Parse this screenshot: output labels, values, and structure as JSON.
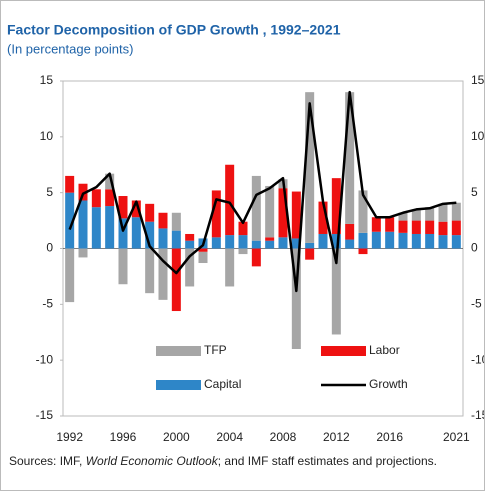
{
  "chart_data": {
    "type": "stacked_bar_line",
    "title": "Factor Decomposition of GDP Growth , 1992–2021",
    "subtitle": "(In percentage points)",
    "categories": [
      "1992",
      null,
      null,
      null,
      "1996",
      null,
      null,
      null,
      "2000",
      null,
      null,
      null,
      "2004",
      null,
      null,
      null,
      "2008",
      null,
      null,
      null,
      "2012",
      null,
      null,
      null,
      "2016",
      null,
      null,
      null,
      null,
      "2021"
    ],
    "series": [
      {
        "name": "Capital",
        "color": "#2e86c8",
        "kind": "bar",
        "values": [
          5.0,
          4.3,
          3.7,
          3.8,
          2.7,
          2.8,
          2.4,
          1.8,
          1.6,
          0.7,
          0.9,
          1.0,
          1.2,
          1.2,
          0.7,
          0.7,
          1.0,
          0.9,
          0.5,
          1.3,
          1.3,
          0.8,
          1.4,
          1.5,
          1.5,
          1.4,
          1.3,
          1.3,
          1.2,
          1.2
        ]
      },
      {
        "name": "Labor",
        "color": "#ee1111",
        "kind": "bar",
        "values": [
          1.5,
          1.5,
          1.6,
          1.5,
          2.0,
          1.5,
          1.6,
          1.4,
          -5.6,
          0.6,
          -0.3,
          4.2,
          6.3,
          1.2,
          -1.6,
          0.3,
          4.4,
          4.2,
          -1.0,
          2.9,
          5.0,
          1.4,
          -0.5,
          1.3,
          1.3,
          1.1,
          1.2,
          1.2,
          1.2,
          1.3
        ]
      },
      {
        "name": "TFP",
        "color": "#a6a6a6",
        "kind": "bar",
        "values": [
          -4.8,
          -0.8,
          0.0,
          1.4,
          -3.2,
          0.0,
          -4.0,
          -4.6,
          1.6,
          -3.4,
          -1.0,
          0.0,
          -3.4,
          -0.5,
          5.8,
          4.6,
          0.8,
          -9.0,
          13.5,
          0.0,
          -7.7,
          11.8,
          3.8,
          0.0,
          0.0,
          0.7,
          1.0,
          1.2,
          1.6,
          1.6
        ]
      },
      {
        "name": "Growth",
        "color": "#000000",
        "kind": "line",
        "values": [
          1.7,
          4.9,
          5.5,
          6.7,
          1.6,
          4.2,
          0.2,
          -1.1,
          -2.2,
          -0.7,
          0.3,
          4.4,
          4.1,
          2.3,
          4.8,
          5.4,
          6.3,
          -3.8,
          13.0,
          4.2,
          -1.3,
          14.0,
          4.8,
          2.8,
          2.8,
          3.2,
          3.5,
          3.6,
          4.0,
          4.1
        ]
      }
    ],
    "ylim": [
      -15,
      15
    ],
    "yticks": [
      -15,
      -10,
      -5,
      0,
      5,
      10,
      15
    ],
    "y2lim": [
      -15,
      15
    ],
    "y2ticks": [
      -15,
      -10,
      -5,
      0,
      5,
      10,
      15
    ],
    "grid": false,
    "source": [
      "Sources: IMF, ",
      "World Economic Outlook",
      "; and IMF staff estimates and projections."
    ]
  }
}
